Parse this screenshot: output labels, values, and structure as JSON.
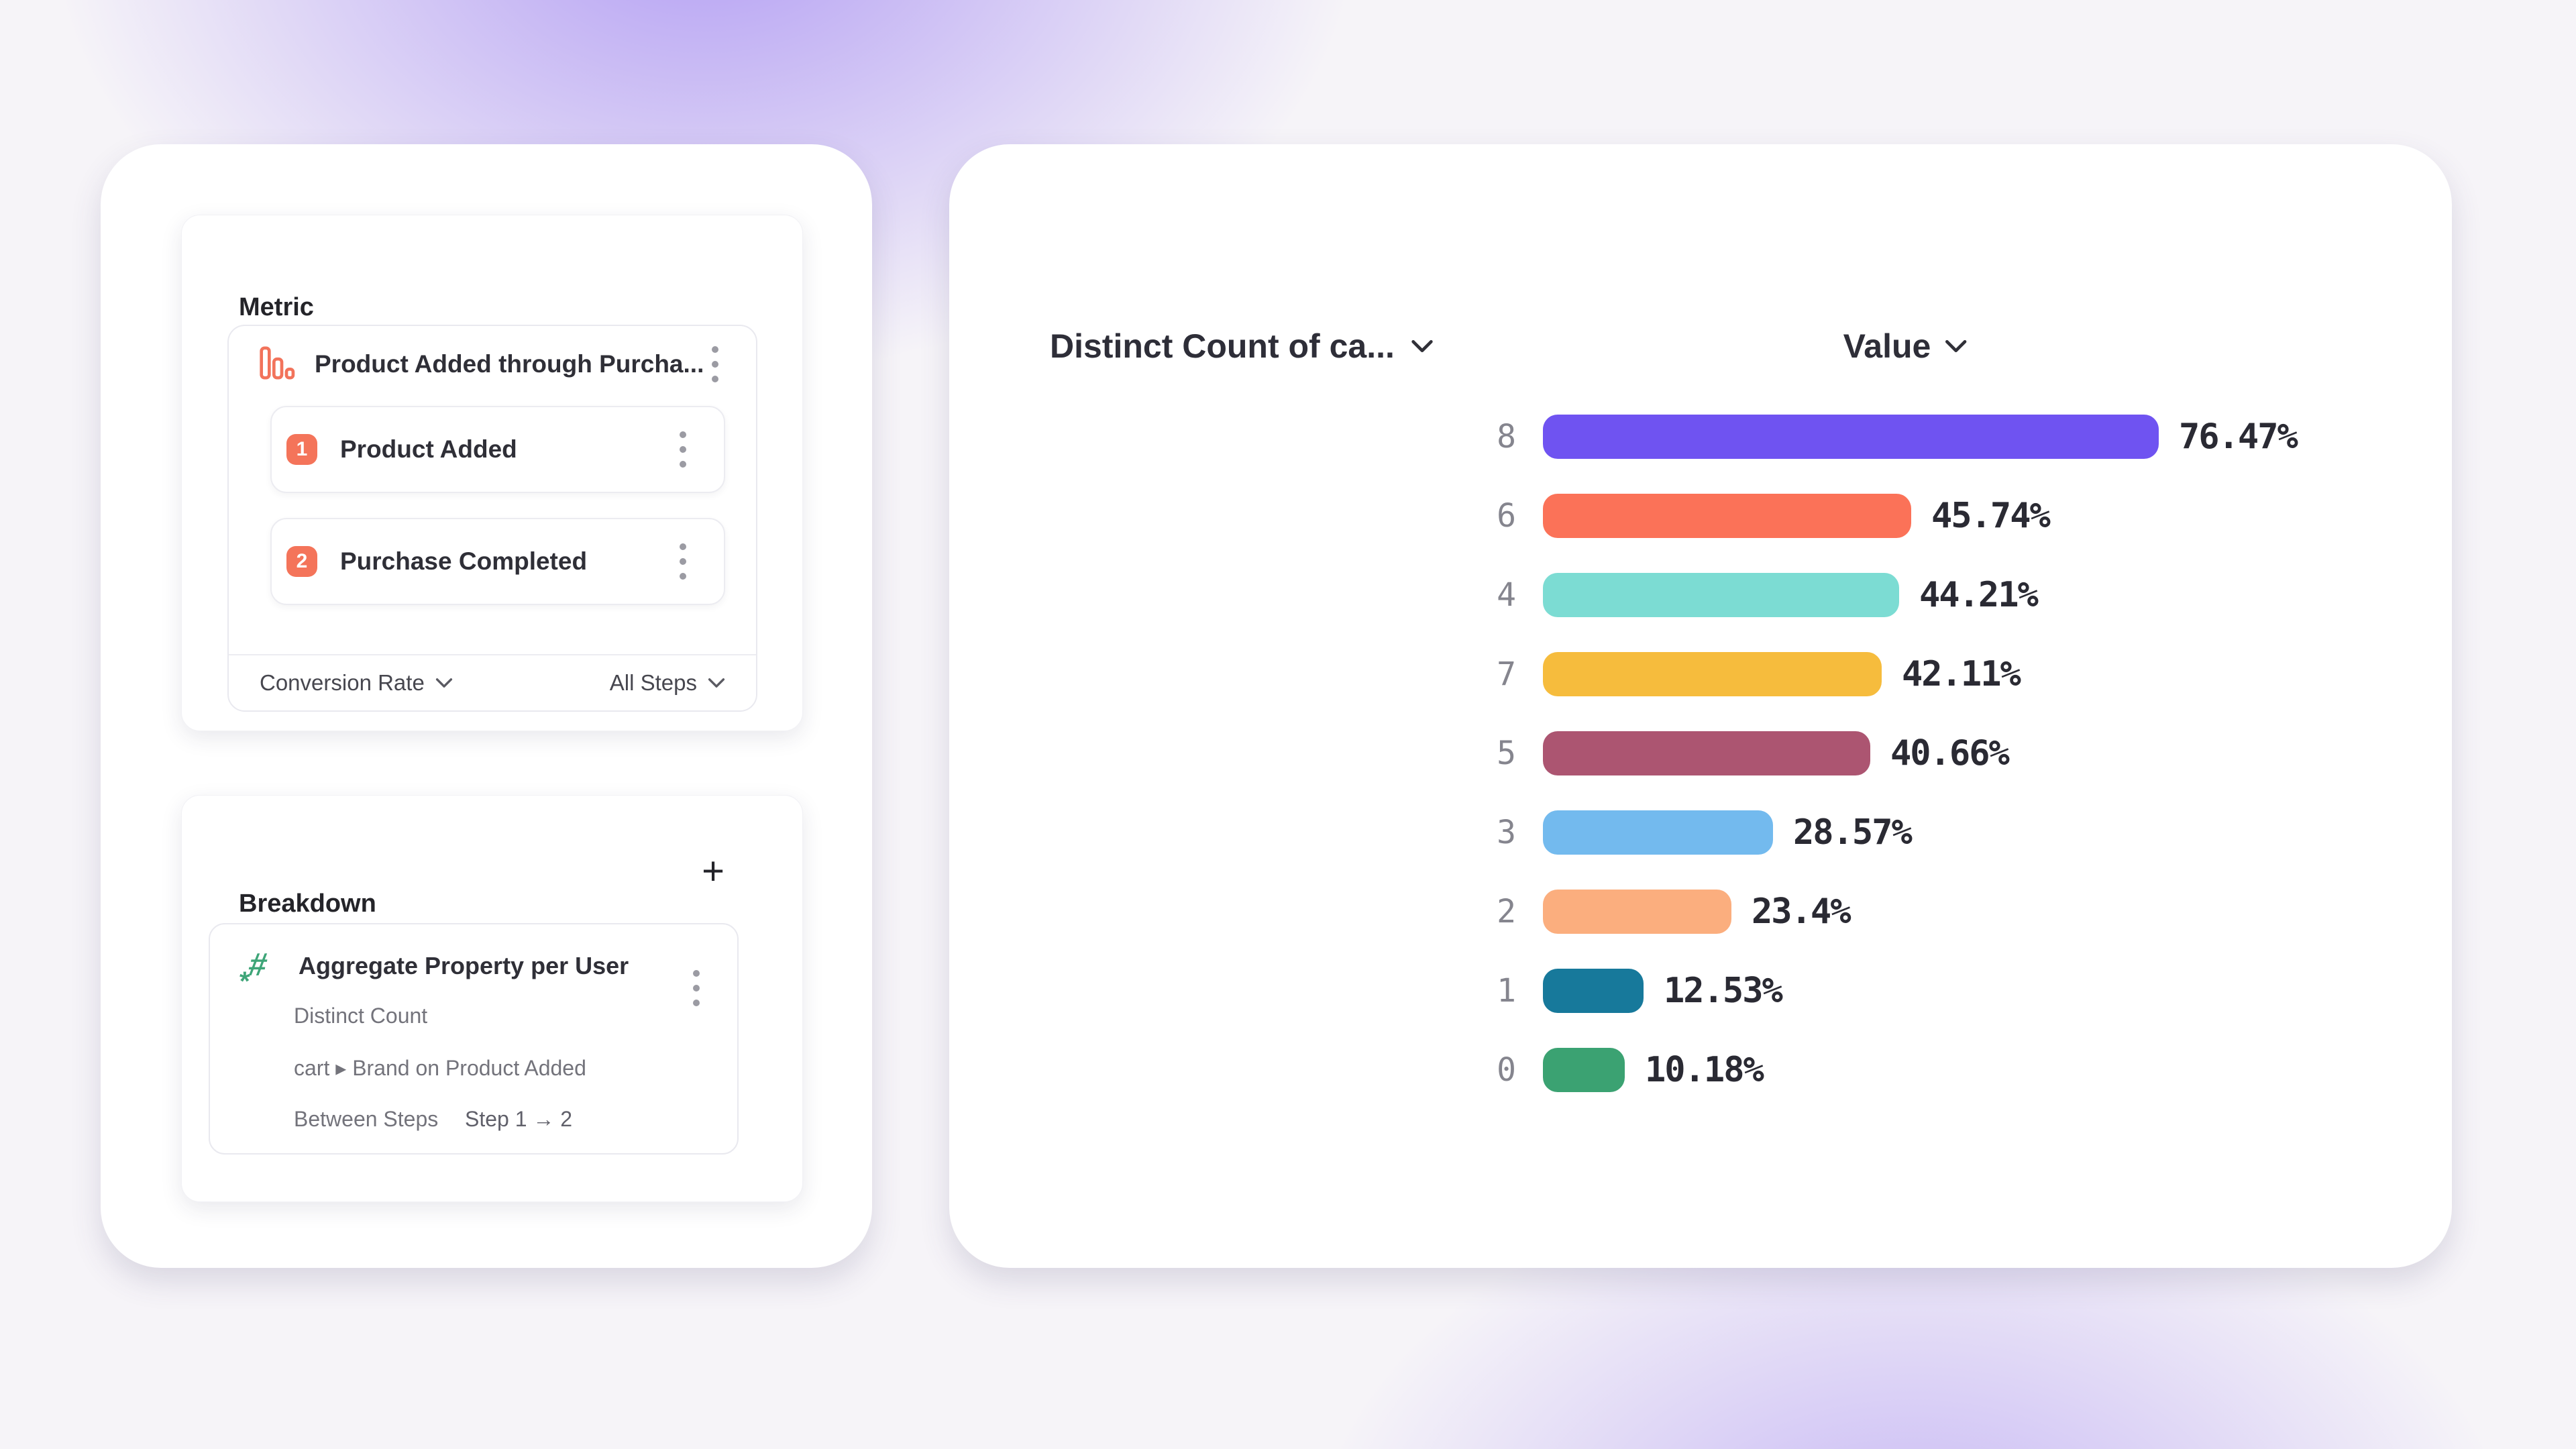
{
  "colors": {
    "accent_orange": "#F4745A",
    "accent_green": "#3EA578",
    "background_purple": "#7C58EE",
    "card_white": "#FFFFFF"
  },
  "icons": [
    "funnel-chart-icon",
    "kebab-menu-icon",
    "chevron-down-icon",
    "plus-icon",
    "hashtag-icon"
  ],
  "left_panel": {
    "metric": {
      "title": "Metric",
      "event": {
        "label": "Product Added through Purcha...",
        "icon": "funnel-chart-icon"
      },
      "steps": [
        {
          "num": "1",
          "label": "Product Added"
        },
        {
          "num": "2",
          "label": "Purchase Completed"
        }
      ],
      "footer": {
        "metric_type": "Conversion Rate",
        "steps_scope": "All Steps"
      }
    },
    "breakdown": {
      "title": "Breakdown",
      "add_label": "+",
      "item": {
        "icon": "hashtag-icon",
        "title": "Aggregate Property per User",
        "aggregation": "Distinct Count",
        "property": "cart ▸ Brand on Product Added",
        "scope_label": "Between Steps",
        "scope_value": "Step 1 → 2"
      }
    }
  },
  "chart": {
    "header_left": "Distinct Count of ca...",
    "header_right": "Value"
  },
  "chart_data": {
    "type": "bar",
    "orientation": "horizontal",
    "title": "",
    "xlabel": "Value",
    "ylabel": "Distinct Count of ca...",
    "categories": [
      "8",
      "6",
      "4",
      "7",
      "5",
      "3",
      "2",
      "1",
      "0"
    ],
    "values": [
      76.47,
      45.74,
      44.21,
      42.11,
      40.66,
      28.57,
      23.4,
      12.53,
      10.18
    ],
    "labels": [
      "76.47%",
      "45.74%",
      "44.21%",
      "42.11%",
      "40.66%",
      "28.57%",
      "23.4%",
      "12.53%",
      "10.18%"
    ],
    "colors": [
      "#6F53F1",
      "#FB7258",
      "#7CDCD3",
      "#F6BC3D",
      "#AC5571",
      "#73BAEE",
      "#FBAE7E",
      "#17799B",
      "#3BA272"
    ],
    "xlim": [
      0,
      80
    ],
    "grid": false,
    "legend": "none",
    "value_labels_shown": true
  }
}
